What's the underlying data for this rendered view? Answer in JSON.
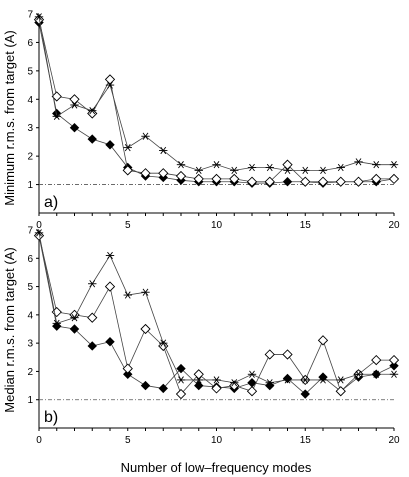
{
  "chart_data": [
    {
      "type": "line",
      "panel_label": "a)",
      "ylabel": "Minimum r.m.s. from target (A)",
      "xlabel": "",
      "xlim": [
        0,
        20
      ],
      "ylim": [
        0,
        7
      ],
      "x_ticks": [
        0,
        5,
        10,
        15,
        20
      ],
      "y_ticks": [
        1,
        2,
        3,
        4,
        5,
        6,
        7
      ],
      "reference_line": 1,
      "x": [
        0,
        1,
        2,
        3,
        4,
        5,
        6,
        7,
        8,
        9,
        10,
        11,
        12,
        13,
        14,
        15,
        16,
        17,
        18,
        19,
        20
      ],
      "series": [
        {
          "marker": "filled-diamond",
          "values": [
            6.7,
            3.5,
            3.0,
            2.6,
            2.4,
            1.6,
            1.3,
            1.25,
            1.15,
            1.1,
            1.1,
            1.1,
            1.05,
            1.05,
            1.1,
            1.1,
            1.05,
            1.1,
            1.1,
            1.1,
            1.2
          ]
        },
        {
          "marker": "open-diamond",
          "values": [
            6.8,
            4.1,
            4.0,
            3.5,
            4.7,
            1.5,
            1.4,
            1.4,
            1.3,
            1.2,
            1.2,
            1.2,
            1.1,
            1.1,
            1.7,
            1.1,
            1.1,
            1.1,
            1.1,
            1.2,
            1.2
          ]
        },
        {
          "marker": "asterisk",
          "values": [
            6.9,
            3.4,
            3.8,
            3.6,
            4.5,
            2.3,
            2.7,
            2.2,
            1.7,
            1.5,
            1.7,
            1.5,
            1.6,
            1.6,
            1.5,
            1.5,
            1.5,
            1.6,
            1.8,
            1.7,
            1.7
          ]
        }
      ]
    },
    {
      "type": "line",
      "panel_label": "b)",
      "ylabel": "Median r.m.s. from target (A)",
      "xlabel": "Number of low–frequency modes",
      "xlim": [
        0,
        20
      ],
      "ylim": [
        0,
        7
      ],
      "x_ticks": [
        0,
        5,
        10,
        15,
        20
      ],
      "y_ticks": [
        1,
        2,
        3,
        4,
        5,
        6,
        7
      ],
      "reference_line": 1,
      "x": [
        0,
        1,
        2,
        3,
        4,
        5,
        6,
        7,
        8,
        9,
        10,
        11,
        12,
        13,
        14,
        15,
        16,
        17,
        18,
        19,
        20
      ],
      "series": [
        {
          "marker": "filled-diamond",
          "values": [
            6.8,
            3.6,
            3.5,
            2.9,
            3.05,
            1.9,
            1.5,
            1.4,
            2.1,
            1.5,
            1.45,
            1.4,
            1.6,
            1.5,
            1.75,
            1.2,
            1.8,
            1.3,
            1.8,
            1.9,
            2.2
          ]
        },
        {
          "marker": "open-diamond",
          "values": [
            6.8,
            4.1,
            4.0,
            3.9,
            5.0,
            2.1,
            3.5,
            2.9,
            1.2,
            1.9,
            1.4,
            1.5,
            1.3,
            2.6,
            2.6,
            1.7,
            3.1,
            1.3,
            1.9,
            2.4,
            2.4
          ]
        },
        {
          "marker": "asterisk",
          "values": [
            6.9,
            3.7,
            3.9,
            5.1,
            6.1,
            4.7,
            4.8,
            3.0,
            1.7,
            1.7,
            1.7,
            1.6,
            1.9,
            1.6,
            1.7,
            1.7,
            1.7,
            1.7,
            1.9,
            1.9,
            1.9
          ]
        }
      ]
    }
  ]
}
